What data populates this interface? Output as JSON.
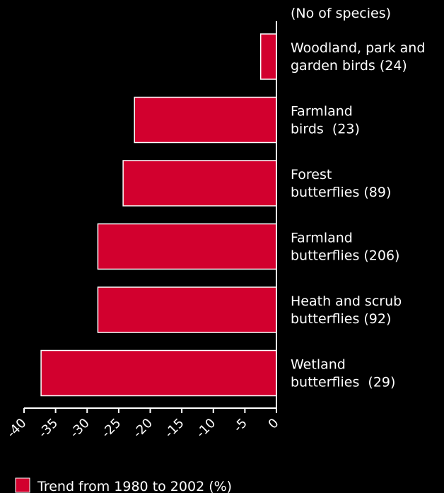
{
  "chart_data": {
    "type": "bar",
    "orientation": "horizontal",
    "header_label": "(No of species)",
    "categories": [
      "Woodland, park and garden birds (24)",
      "Farmland birds (23)",
      "Forest butterflies (89)",
      "Farmland butterflies (206)",
      "Heath and scrub butterflies (92)",
      "Wetland butterflies (29)"
    ],
    "category_lines": [
      [
        "Woodland, park and",
        "garden birds (24)"
      ],
      [
        "Farmland",
        "birds  (23)"
      ],
      [
        "Forest",
        "butterflies (89)"
      ],
      [
        "Farmland",
        "butterflies (206)"
      ],
      [
        "Heath and scrub",
        "butterflies (92)"
      ],
      [
        "Wetland",
        "butterflies  (29)"
      ]
    ],
    "series": [
      {
        "name": "Trend from 1980 to 2002 (%)",
        "values": [
          -2.5,
          -22.5,
          -24.3,
          -28.3,
          -28.3,
          -37.3
        ]
      }
    ],
    "xlim": [
      -40,
      0
    ],
    "xticks": [
      -40,
      -35,
      -30,
      -25,
      -20,
      -15,
      -10,
      -5,
      0
    ],
    "xtick_labels": [
      "-40",
      "-35",
      "-30",
      "-25",
      "-20",
      "-15",
      "-10",
      "-5",
      "0"
    ],
    "legend_position": "bottom-left",
    "grid": false,
    "colors": {
      "background": "#000000",
      "bar": "#d2002e",
      "axis": "#ffffff",
      "text": "#ffffff"
    }
  }
}
